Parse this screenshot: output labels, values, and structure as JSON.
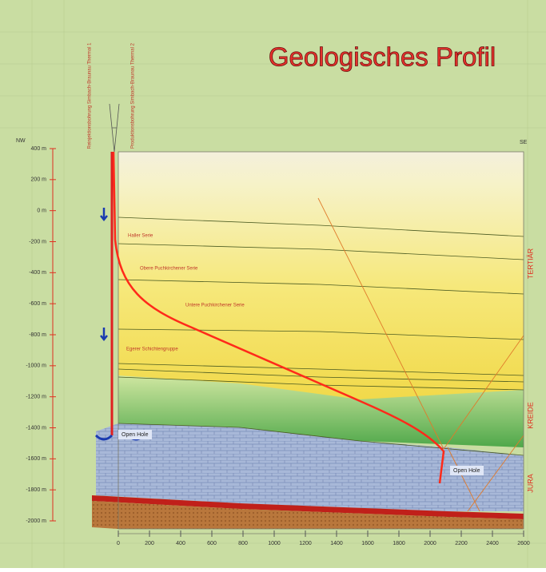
{
  "header": {
    "title": "Geologisches Profil"
  },
  "wells": [
    {
      "label": "Reinjektionsbohrung Simbach-Braunau Thermal 1"
    },
    {
      "label": "Produktionsbohrung Simbach-Braunau Thermal 2"
    }
  ],
  "left_axis": {
    "ticks": [
      "400 m",
      "200 m",
      "0 m",
      "-200 m",
      "-400 m",
      "-600 m",
      "-800 m",
      "-1000 m",
      "-1200 m",
      "-1400 m",
      "-1600 m",
      "-1800 m",
      "-2000 m"
    ]
  },
  "bottom_axis": {
    "ticks": [
      "0",
      "200",
      "400",
      "600",
      "800",
      "1000",
      "1200",
      "1400",
      "1600",
      "1800",
      "2000",
      "2200",
      "2400",
      "2600"
    ]
  },
  "compass": {
    "left": "NW",
    "right": "SE"
  },
  "layers": [
    "Haller Serie",
    "Obere Puchkirchener Serie",
    "Untere Puchkirchener Serie",
    "Egerer Schichtengruppe"
  ],
  "open_hole": [
    "Open Hole",
    "Open Hole"
  ],
  "periods": [
    "TERTIÄR",
    "KREIDE",
    "JURA"
  ]
}
